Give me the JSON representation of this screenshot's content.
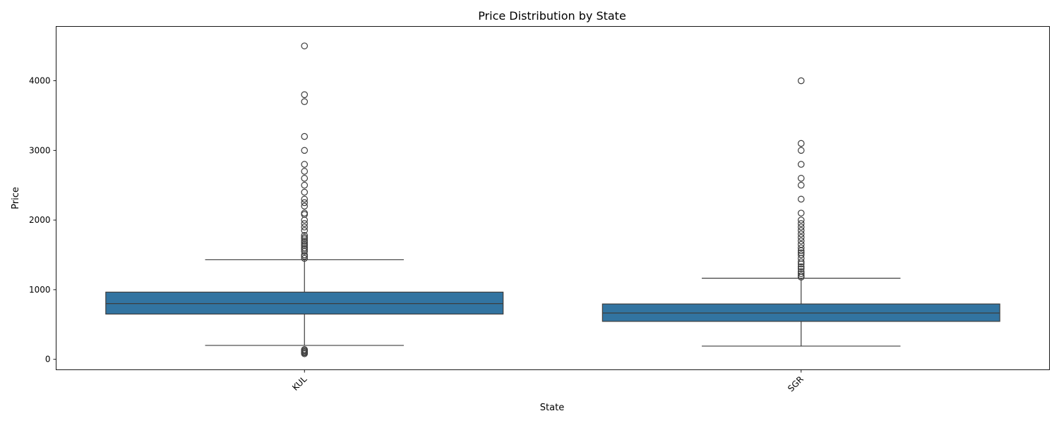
{
  "chart_data": {
    "type": "box",
    "title": "Price Distribution by State",
    "xlabel": "State",
    "ylabel": "Price",
    "ylim": [
      -150,
      4780
    ],
    "yticks": [
      0,
      1000,
      2000,
      3000,
      4000
    ],
    "grid": false,
    "legend": "none",
    "box_color": "#3274a1",
    "edge_color": "#3d3d3d",
    "categories": [
      "KUL",
      "SGR"
    ],
    "boxes": [
      {
        "category": "KUL",
        "whisker_low": 200,
        "q1": 650,
        "median": 800,
        "q3": 965,
        "whisker_high": 1430,
        "outliers": [
          80,
          95,
          110,
          125,
          140,
          1450,
          1480,
          1500,
          1550,
          1580,
          1600,
          1630,
          1650,
          1680,
          1700,
          1730,
          1750,
          1780,
          1850,
          1900,
          1950,
          2000,
          2080,
          2100,
          2200,
          2250,
          2300,
          2400,
          2500,
          2600,
          2700,
          2800,
          3000,
          3200,
          3700,
          3800,
          4500
        ]
      },
      {
        "category": "SGR",
        "whisker_low": 190,
        "q1": 545,
        "median": 665,
        "q3": 795,
        "whisker_high": 1165,
        "outliers": [
          1180,
          1200,
          1230,
          1260,
          1300,
          1330,
          1370,
          1400,
          1450,
          1500,
          1530,
          1560,
          1600,
          1650,
          1700,
          1750,
          1800,
          1850,
          1900,
          1950,
          2000,
          2100,
          2300,
          2500,
          2600,
          2800,
          3000,
          3100,
          4000
        ]
      }
    ]
  }
}
